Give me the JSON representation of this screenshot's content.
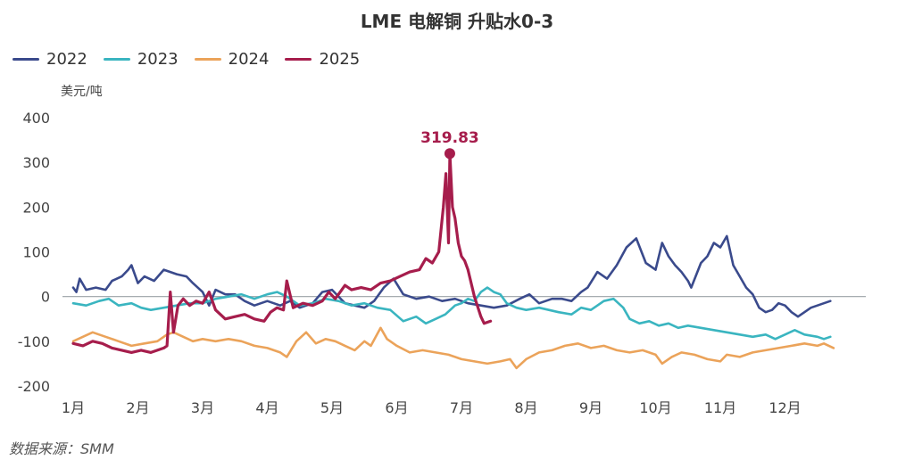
{
  "chart_data": {
    "type": "line",
    "title": "LME 电解铜 升贴水0-3",
    "ylabel": "美元/吨",
    "ylim": [
      -200,
      400
    ],
    "yticks": [
      "400",
      "300",
      "200",
      "100",
      "0",
      "-100",
      "-200"
    ],
    "categories": [
      "1月",
      "2月",
      "3月",
      "4月",
      "5月",
      "6月",
      "7月",
      "8月",
      "9月",
      "10月",
      "11月",
      "12月"
    ],
    "grid": false,
    "legend_position": "top-left",
    "annotation": {
      "label": "319.83",
      "series": "2025",
      "x": 5.82,
      "y": 319.83
    },
    "series": [
      {
        "name": "2022",
        "color": "#3a4a8c",
        "points": [
          [
            0.0,
            20
          ],
          [
            0.05,
            10
          ],
          [
            0.1,
            40
          ],
          [
            0.2,
            15
          ],
          [
            0.35,
            20
          ],
          [
            0.5,
            15
          ],
          [
            0.6,
            35
          ],
          [
            0.75,
            45
          ],
          [
            0.85,
            60
          ],
          [
            0.9,
            70
          ],
          [
            1.0,
            30
          ],
          [
            1.1,
            45
          ],
          [
            1.25,
            35
          ],
          [
            1.4,
            60
          ],
          [
            1.5,
            55
          ],
          [
            1.6,
            50
          ],
          [
            1.75,
            45
          ],
          [
            1.85,
            30
          ],
          [
            2.0,
            10
          ],
          [
            2.1,
            -20
          ],
          [
            2.2,
            15
          ],
          [
            2.35,
            5
          ],
          [
            2.5,
            5
          ],
          [
            2.65,
            -10
          ],
          [
            2.8,
            -20
          ],
          [
            3.0,
            -10
          ],
          [
            3.2,
            -20
          ],
          [
            3.35,
            -10
          ],
          [
            3.5,
            -25
          ],
          [
            3.7,
            -15
          ],
          [
            3.85,
            10
          ],
          [
            4.0,
            15
          ],
          [
            4.2,
            -15
          ],
          [
            4.35,
            -20
          ],
          [
            4.5,
            -25
          ],
          [
            4.65,
            -10
          ],
          [
            4.8,
            20
          ],
          [
            4.95,
            40
          ],
          [
            5.1,
            5
          ],
          [
            5.3,
            -5
          ],
          [
            5.5,
            0
          ],
          [
            5.7,
            -10
          ],
          [
            5.9,
            -5
          ],
          [
            6.1,
            -15
          ],
          [
            6.3,
            -20
          ],
          [
            6.5,
            -25
          ],
          [
            6.7,
            -20
          ],
          [
            6.9,
            -5
          ],
          [
            7.05,
            5
          ],
          [
            7.2,
            -15
          ],
          [
            7.4,
            -5
          ],
          [
            7.55,
            -5
          ],
          [
            7.7,
            -10
          ],
          [
            7.85,
            10
          ],
          [
            7.95,
            20
          ],
          [
            8.1,
            55
          ],
          [
            8.25,
            40
          ],
          [
            8.4,
            70
          ],
          [
            8.55,
            110
          ],
          [
            8.7,
            130
          ],
          [
            8.85,
            75
          ],
          [
            9.0,
            60
          ],
          [
            9.1,
            120
          ],
          [
            9.2,
            90
          ],
          [
            9.3,
            70
          ],
          [
            9.4,
            55
          ],
          [
            9.5,
            35
          ],
          [
            9.55,
            20
          ],
          [
            9.7,
            75
          ],
          [
            9.8,
            90
          ],
          [
            9.9,
            120
          ],
          [
            10.0,
            110
          ],
          [
            10.1,
            135
          ],
          [
            10.2,
            70
          ],
          [
            10.3,
            45
          ],
          [
            10.4,
            20
          ],
          [
            10.5,
            5
          ],
          [
            10.6,
            -25
          ],
          [
            10.7,
            -35
          ],
          [
            10.8,
            -30
          ],
          [
            10.9,
            -15
          ],
          [
            11.0,
            -20
          ],
          [
            11.1,
            -35
          ],
          [
            11.2,
            -45
          ],
          [
            11.3,
            -35
          ],
          [
            11.4,
            -25
          ],
          [
            11.5,
            -20
          ],
          [
            11.6,
            -15
          ],
          [
            11.7,
            -10
          ]
        ]
      },
      {
        "name": "2023",
        "color": "#3ab5c0",
        "points": [
          [
            0.0,
            -15
          ],
          [
            0.2,
            -20
          ],
          [
            0.4,
            -10
          ],
          [
            0.55,
            -5
          ],
          [
            0.7,
            -20
          ],
          [
            0.9,
            -15
          ],
          [
            1.05,
            -25
          ],
          [
            1.2,
            -30
          ],
          [
            1.4,
            -25
          ],
          [
            1.6,
            -20
          ],
          [
            1.8,
            -15
          ],
          [
            2.0,
            -15
          ],
          [
            2.2,
            -5
          ],
          [
            2.4,
            0
          ],
          [
            2.6,
            5
          ],
          [
            2.8,
            -5
          ],
          [
            3.0,
            5
          ],
          [
            3.15,
            10
          ],
          [
            3.3,
            0
          ],
          [
            3.5,
            -20
          ],
          [
            3.7,
            -15
          ],
          [
            3.9,
            -5
          ],
          [
            4.1,
            -10
          ],
          [
            4.3,
            -20
          ],
          [
            4.5,
            -15
          ],
          [
            4.7,
            -25
          ],
          [
            4.9,
            -30
          ],
          [
            5.1,
            -55
          ],
          [
            5.3,
            -45
          ],
          [
            5.45,
            -60
          ],
          [
            5.6,
            -50
          ],
          [
            5.75,
            -40
          ],
          [
            5.9,
            -20
          ],
          [
            6.0,
            -15
          ],
          [
            6.1,
            -5
          ],
          [
            6.2,
            -10
          ],
          [
            6.3,
            10
          ],
          [
            6.4,
            20
          ],
          [
            6.5,
            10
          ],
          [
            6.6,
            5
          ],
          [
            6.7,
            -15
          ],
          [
            6.85,
            -25
          ],
          [
            7.0,
            -30
          ],
          [
            7.2,
            -25
          ],
          [
            7.35,
            -30
          ],
          [
            7.5,
            -35
          ],
          [
            7.7,
            -40
          ],
          [
            7.85,
            -25
          ],
          [
            8.0,
            -30
          ],
          [
            8.1,
            -20
          ],
          [
            8.2,
            -10
          ],
          [
            8.35,
            -5
          ],
          [
            8.5,
            -25
          ],
          [
            8.6,
            -50
          ],
          [
            8.75,
            -60
          ],
          [
            8.9,
            -55
          ],
          [
            9.05,
            -65
          ],
          [
            9.2,
            -60
          ],
          [
            9.35,
            -70
          ],
          [
            9.5,
            -65
          ],
          [
            9.7,
            -70
          ],
          [
            9.9,
            -75
          ],
          [
            10.1,
            -80
          ],
          [
            10.3,
            -85
          ],
          [
            10.5,
            -90
          ],
          [
            10.7,
            -85
          ],
          [
            10.85,
            -95
          ],
          [
            11.0,
            -85
          ],
          [
            11.15,
            -75
          ],
          [
            11.3,
            -85
          ],
          [
            11.5,
            -90
          ],
          [
            11.6,
            -95
          ],
          [
            11.7,
            -90
          ]
        ]
      },
      {
        "name": "2024",
        "color": "#eba35a",
        "points": [
          [
            0.0,
            -100
          ],
          [
            0.15,
            -90
          ],
          [
            0.3,
            -80
          ],
          [
            0.5,
            -90
          ],
          [
            0.7,
            -100
          ],
          [
            0.9,
            -110
          ],
          [
            1.1,
            -105
          ],
          [
            1.3,
            -100
          ],
          [
            1.45,
            -85
          ],
          [
            1.55,
            -80
          ],
          [
            1.7,
            -90
          ],
          [
            1.85,
            -100
          ],
          [
            2.0,
            -95
          ],
          [
            2.2,
            -100
          ],
          [
            2.4,
            -95
          ],
          [
            2.6,
            -100
          ],
          [
            2.8,
            -110
          ],
          [
            3.0,
            -115
          ],
          [
            3.2,
            -125
          ],
          [
            3.3,
            -135
          ],
          [
            3.45,
            -100
          ],
          [
            3.6,
            -80
          ],
          [
            3.75,
            -105
          ],
          [
            3.9,
            -95
          ],
          [
            4.05,
            -100
          ],
          [
            4.2,
            -110
          ],
          [
            4.35,
            -120
          ],
          [
            4.5,
            -100
          ],
          [
            4.6,
            -110
          ],
          [
            4.75,
            -70
          ],
          [
            4.85,
            -95
          ],
          [
            5.0,
            -110
          ],
          [
            5.2,
            -125
          ],
          [
            5.4,
            -120
          ],
          [
            5.6,
            -125
          ],
          [
            5.8,
            -130
          ],
          [
            6.0,
            -140
          ],
          [
            6.2,
            -145
          ],
          [
            6.4,
            -150
          ],
          [
            6.6,
            -145
          ],
          [
            6.75,
            -140
          ],
          [
            6.85,
            -160
          ],
          [
            7.0,
            -140
          ],
          [
            7.2,
            -125
          ],
          [
            7.4,
            -120
          ],
          [
            7.6,
            -110
          ],
          [
            7.8,
            -105
          ],
          [
            8.0,
            -115
          ],
          [
            8.2,
            -110
          ],
          [
            8.4,
            -120
          ],
          [
            8.6,
            -125
          ],
          [
            8.8,
            -120
          ],
          [
            9.0,
            -130
          ],
          [
            9.1,
            -150
          ],
          [
            9.25,
            -135
          ],
          [
            9.4,
            -125
          ],
          [
            9.6,
            -130
          ],
          [
            9.8,
            -140
          ],
          [
            10.0,
            -145
          ],
          [
            10.1,
            -130
          ],
          [
            10.3,
            -135
          ],
          [
            10.5,
            -125
          ],
          [
            10.7,
            -120
          ],
          [
            10.9,
            -115
          ],
          [
            11.1,
            -110
          ],
          [
            11.3,
            -105
          ],
          [
            11.5,
            -110
          ],
          [
            11.6,
            -105
          ],
          [
            11.75,
            -115
          ]
        ]
      },
      {
        "name": "2025",
        "color": "#a61d4c",
        "points": [
          [
            0.0,
            -105
          ],
          [
            0.15,
            -110
          ],
          [
            0.3,
            -100
          ],
          [
            0.45,
            -105
          ],
          [
            0.6,
            -115
          ],
          [
            0.75,
            -120
          ],
          [
            0.9,
            -125
          ],
          [
            1.05,
            -120
          ],
          [
            1.2,
            -125
          ],
          [
            1.3,
            -120
          ],
          [
            1.4,
            -115
          ],
          [
            1.45,
            -110
          ],
          [
            1.5,
            10
          ],
          [
            1.55,
            -80
          ],
          [
            1.62,
            -20
          ],
          [
            1.7,
            -5
          ],
          [
            1.8,
            -20
          ],
          [
            1.9,
            -10
          ],
          [
            2.0,
            -15
          ],
          [
            2.1,
            10
          ],
          [
            2.2,
            -30
          ],
          [
            2.35,
            -50
          ],
          [
            2.5,
            -45
          ],
          [
            2.65,
            -40
          ],
          [
            2.8,
            -50
          ],
          [
            2.95,
            -55
          ],
          [
            3.05,
            -35
          ],
          [
            3.15,
            -25
          ],
          [
            3.25,
            -30
          ],
          [
            3.3,
            35
          ],
          [
            3.4,
            -25
          ],
          [
            3.55,
            -15
          ],
          [
            3.7,
            -20
          ],
          [
            3.85,
            -10
          ],
          [
            3.95,
            10
          ],
          [
            4.05,
            -5
          ],
          [
            4.2,
            25
          ],
          [
            4.3,
            15
          ],
          [
            4.45,
            20
          ],
          [
            4.6,
            15
          ],
          [
            4.75,
            30
          ],
          [
            4.9,
            35
          ],
          [
            5.05,
            45
          ],
          [
            5.2,
            55
          ],
          [
            5.35,
            60
          ],
          [
            5.45,
            85
          ],
          [
            5.55,
            75
          ],
          [
            5.65,
            100
          ],
          [
            5.72,
            200
          ],
          [
            5.76,
            275
          ],
          [
            5.8,
            120
          ],
          [
            5.82,
            319.83
          ],
          [
            5.86,
            200
          ],
          [
            5.9,
            175
          ],
          [
            5.95,
            120
          ],
          [
            6.0,
            90
          ],
          [
            6.05,
            80
          ],
          [
            6.1,
            60
          ],
          [
            6.2,
            0
          ],
          [
            6.3,
            -45
          ],
          [
            6.35,
            -60
          ],
          [
            6.45,
            -55
          ]
        ]
      }
    ]
  },
  "source": "数据来源：SMM"
}
